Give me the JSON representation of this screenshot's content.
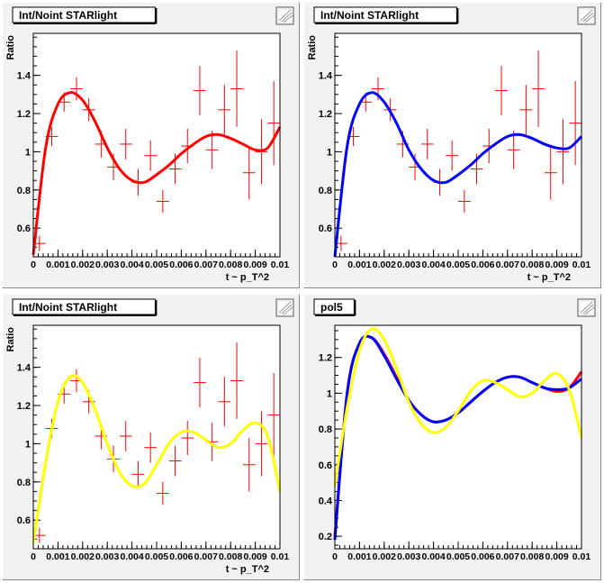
{
  "colors": {
    "red": "#ff0000",
    "blue": "#0000ff",
    "yellow": "#ffff00",
    "data": "#ff0000",
    "pad_bg": "#f2f2f2",
    "frame_bg": "#ffffff"
  },
  "icons": [
    "zoom-icon"
  ],
  "chart_data": [
    {
      "type": "scatter",
      "title": "Int/Noint STARlight",
      "ylabel": "Ratio",
      "xlabel": "t ~ p_T^2",
      "xlim": [
        0,
        0.01
      ],
      "ylim": [
        0.45,
        1.62
      ],
      "xticks": [
        "0",
        "0.001",
        "0.002",
        "0.003",
        "0.004",
        "0.005",
        "0.006",
        "0.007",
        "0.008",
        "0.009",
        "0.01"
      ],
      "yticks": [
        "0.6",
        "0.8",
        "1",
        "1.2",
        "1.4"
      ],
      "points": {
        "x": [
          0.00025,
          0.00075,
          0.00125,
          0.00175,
          0.00225,
          0.00275,
          0.00325,
          0.00375,
          0.00425,
          0.00475,
          0.00525,
          0.00575,
          0.00625,
          0.00675,
          0.00725,
          0.00775,
          0.00825,
          0.00875,
          0.00925,
          0.00975
        ],
        "y": [
          0.52,
          1.08,
          1.26,
          1.33,
          1.22,
          1.04,
          0.92,
          1.04,
          0.84,
          0.98,
          0.74,
          0.91,
          1.03,
          1.32,
          1.01,
          1.22,
          1.33,
          0.89,
          1.0,
          1.15
        ],
        "yerr": [
          0.04,
          0.05,
          0.05,
          0.06,
          0.06,
          0.07,
          0.07,
          0.08,
          0.07,
          0.08,
          0.06,
          0.08,
          0.09,
          0.13,
          0.1,
          0.13,
          0.2,
          0.14,
          0.17,
          0.22
        ]
      },
      "fits": [
        {
          "name": "pol5",
          "color": "#ff0000",
          "x": [
            0,
            0.0005,
            0.001,
            0.0015,
            0.002,
            0.0025,
            0.003,
            0.0035,
            0.004,
            0.0045,
            0.005,
            0.0055,
            0.006,
            0.0065,
            0.007,
            0.0075,
            0.008,
            0.0085,
            0.009,
            0.0095,
            0.01
          ],
          "y": [
            0.46,
            1.02,
            1.25,
            1.31,
            1.27,
            1.16,
            1.02,
            0.91,
            0.85,
            0.84,
            0.88,
            0.93,
            0.99,
            1.04,
            1.08,
            1.09,
            1.07,
            1.04,
            1.01,
            1.02,
            1.13
          ]
        }
      ]
    },
    {
      "type": "scatter",
      "title": "Int/Noint STARlight",
      "ylabel": "Ratio",
      "xlabel": "t ~ p_T^2",
      "xlim": [
        0,
        0.01
      ],
      "ylim": [
        0.45,
        1.62
      ],
      "xticks": [
        "0",
        "0.001",
        "0.002",
        "0.003",
        "0.004",
        "0.005",
        "0.006",
        "0.007",
        "0.008",
        "0.009",
        "0.01"
      ],
      "yticks": [
        "0.6",
        "0.8",
        "1",
        "1.2",
        "1.4"
      ],
      "points": {
        "x": [
          0.00025,
          0.00075,
          0.00125,
          0.00175,
          0.00225,
          0.00275,
          0.00325,
          0.00375,
          0.00425,
          0.00475,
          0.00525,
          0.00575,
          0.00625,
          0.00675,
          0.00725,
          0.00775,
          0.00825,
          0.00875,
          0.00925,
          0.00975
        ],
        "y": [
          0.52,
          1.08,
          1.26,
          1.33,
          1.22,
          1.04,
          0.92,
          1.04,
          0.84,
          0.98,
          0.74,
          0.91,
          1.03,
          1.32,
          1.01,
          1.22,
          1.33,
          0.89,
          1.0,
          1.15
        ],
        "yerr": [
          0.04,
          0.05,
          0.05,
          0.06,
          0.06,
          0.07,
          0.07,
          0.08,
          0.07,
          0.08,
          0.06,
          0.08,
          0.09,
          0.13,
          0.1,
          0.13,
          0.2,
          0.14,
          0.17,
          0.22
        ]
      },
      "fits": [
        {
          "name": "fit",
          "color": "#0000ff",
          "x": [
            0,
            0.0005,
            0.001,
            0.0015,
            0.002,
            0.0025,
            0.003,
            0.0035,
            0.004,
            0.0045,
            0.005,
            0.0055,
            0.006,
            0.0065,
            0.007,
            0.0075,
            0.008,
            0.0085,
            0.009,
            0.0095,
            0.01
          ],
          "y": [
            0.45,
            1.03,
            1.25,
            1.31,
            1.26,
            1.15,
            1.01,
            0.91,
            0.85,
            0.84,
            0.88,
            0.93,
            0.99,
            1.04,
            1.08,
            1.09,
            1.07,
            1.04,
            1.02,
            1.02,
            1.08
          ]
        }
      ]
    },
    {
      "type": "scatter",
      "title": "Int/Noint STARlight",
      "ylabel": "Ratio",
      "xlabel": "t ~ p_T^2",
      "xlim": [
        0,
        0.01
      ],
      "ylim": [
        0.45,
        1.62
      ],
      "xticks": [
        "0",
        "0.001",
        "0.002",
        "0.003",
        "0.004",
        "0.005",
        "0.006",
        "0.007",
        "0.008",
        "0.009",
        "0.01"
      ],
      "yticks": [
        "0.6",
        "0.8",
        "1",
        "1.2",
        "1.4"
      ],
      "points": {
        "x": [
          0.00025,
          0.00075,
          0.00125,
          0.00175,
          0.00225,
          0.00275,
          0.00325,
          0.00375,
          0.00425,
          0.00475,
          0.00525,
          0.00575,
          0.00625,
          0.00675,
          0.00725,
          0.00775,
          0.00825,
          0.00875,
          0.00925,
          0.00975
        ],
        "y": [
          0.52,
          1.08,
          1.26,
          1.33,
          1.22,
          1.04,
          0.92,
          1.04,
          0.84,
          0.98,
          0.74,
          0.91,
          1.03,
          1.32,
          1.01,
          1.22,
          1.33,
          0.89,
          1.0,
          1.15
        ],
        "yerr": [
          0.04,
          0.05,
          0.05,
          0.06,
          0.06,
          0.07,
          0.07,
          0.08,
          0.07,
          0.08,
          0.06,
          0.08,
          0.09,
          0.13,
          0.1,
          0.13,
          0.2,
          0.14,
          0.17,
          0.22
        ]
      },
      "fits": [
        {
          "name": "fit",
          "color": "#ffff00",
          "x": [
            0,
            0.0005,
            0.001,
            0.0015,
            0.002,
            0.0025,
            0.003,
            0.0035,
            0.004,
            0.0045,
            0.005,
            0.0055,
            0.006,
            0.0065,
            0.007,
            0.0075,
            0.008,
            0.0085,
            0.009,
            0.0095,
            0.01
          ],
          "y": [
            0.48,
            0.9,
            1.22,
            1.35,
            1.32,
            1.18,
            1.0,
            0.85,
            0.78,
            0.79,
            0.89,
            1.0,
            1.06,
            1.06,
            1.02,
            0.98,
            1.0,
            1.07,
            1.11,
            1.04,
            0.75
          ]
        }
      ]
    },
    {
      "type": "line",
      "title": "pol5",
      "ylabel": "",
      "xlabel": "",
      "xlim": [
        0,
        0.01
      ],
      "ylim": [
        0.13,
        1.38
      ],
      "xticks": [
        "0",
        "0.001",
        "0.002",
        "0.003",
        "0.004",
        "0.005",
        "0.006",
        "0.007",
        "0.008",
        "0.009",
        "0.01"
      ],
      "yticks": [
        "0.2",
        "0.4",
        "0.6",
        "0.8",
        "1",
        "1.2"
      ],
      "series": [
        {
          "name": "red",
          "color": "#ff0000",
          "x": [
            0,
            0.0005,
            0.001,
            0.0015,
            0.002,
            0.0025,
            0.003,
            0.0035,
            0.004,
            0.0045,
            0.005,
            0.0055,
            0.006,
            0.0065,
            0.007,
            0.0075,
            0.008,
            0.0085,
            0.009,
            0.0095,
            0.01
          ],
          "y": [
            0.2,
            1.0,
            1.28,
            1.31,
            1.22,
            1.09,
            0.96,
            0.88,
            0.84,
            0.85,
            0.89,
            0.95,
            1.01,
            1.06,
            1.09,
            1.09,
            1.06,
            1.03,
            1.01,
            1.03,
            1.12
          ]
        },
        {
          "name": "blue",
          "color": "#0000ff",
          "x": [
            0,
            0.0005,
            0.001,
            0.0015,
            0.002,
            0.0025,
            0.003,
            0.0035,
            0.004,
            0.0045,
            0.005,
            0.0055,
            0.006,
            0.0065,
            0.007,
            0.0075,
            0.008,
            0.0085,
            0.009,
            0.0095,
            0.01
          ],
          "y": [
            0.18,
            1.0,
            1.28,
            1.31,
            1.21,
            1.08,
            0.96,
            0.88,
            0.84,
            0.85,
            0.89,
            0.95,
            1.01,
            1.06,
            1.09,
            1.09,
            1.06,
            1.03,
            1.02,
            1.03,
            1.08
          ]
        },
        {
          "name": "yellow",
          "color": "#ffff00",
          "x": [
            0,
            0.0005,
            0.001,
            0.0015,
            0.002,
            0.0025,
            0.003,
            0.0035,
            0.004,
            0.0045,
            0.005,
            0.0055,
            0.006,
            0.0065,
            0.007,
            0.0075,
            0.008,
            0.0085,
            0.009,
            0.0095,
            0.01
          ],
          "y": [
            0.48,
            0.92,
            1.24,
            1.36,
            1.3,
            1.14,
            0.95,
            0.83,
            0.78,
            0.81,
            0.9,
            1.01,
            1.07,
            1.06,
            1.02,
            0.98,
            1.0,
            1.07,
            1.11,
            1.02,
            0.75
          ]
        }
      ]
    }
  ]
}
